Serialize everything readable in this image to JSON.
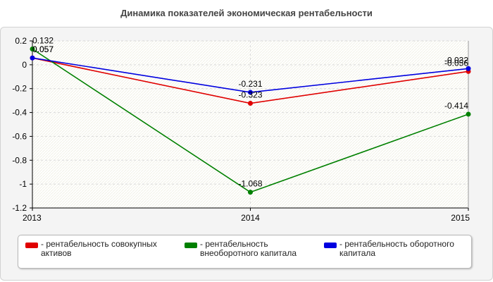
{
  "chart_data": {
    "type": "line",
    "title": "Динамика показателей экономическая рентабельности",
    "x": [
      "2013",
      "2014",
      "2015"
    ],
    "ylim": [
      -1.2,
      0.2
    ],
    "yticks": [
      0.2,
      0,
      -0.2,
      -0.4,
      -0.6,
      -0.8,
      -1,
      -1.2
    ],
    "ytick_labels": [
      "0.2",
      "0",
      "-0.2",
      "-0.4",
      "-0.6",
      "-0.8",
      "-1",
      "-1.2"
    ],
    "grid": true,
    "legend_position": "bottom",
    "series": [
      {
        "name": "рентабельность совокупных активов",
        "color": "#e00000",
        "values": [
          0.057,
          -0.323,
          -0.056
        ],
        "labels": [
          "0.057",
          "-0.323",
          "-0.056"
        ],
        "label_text_x": [
          "0.057",
          "-0.323",
          "-0.056"
        ],
        "label_display": [
          "0.057",
          "-0.323",
          "-0.056"
        ]
      },
      {
        "name": "рентабельность внеоборотного капитала",
        "color": "#008000",
        "values": [
          0.132,
          -1.068,
          -0.414
        ],
        "labels": [
          "0.132",
          "-1.068",
          "-0.414"
        ]
      },
      {
        "name": "рентабельность оборотного капитала",
        "color": "#0000e0",
        "values": [
          0.057,
          -0.231,
          -0.032
        ],
        "labels": [
          "0.057",
          "-0.231",
          "-0.032"
        ]
      }
    ]
  },
  "legend": {
    "items": [
      {
        "text": "- рентабельность совокупных активов"
      },
      {
        "text": "- рентабельность внеоборотного капитала"
      },
      {
        "text": "- рентабельность оборотного капитала"
      }
    ]
  }
}
